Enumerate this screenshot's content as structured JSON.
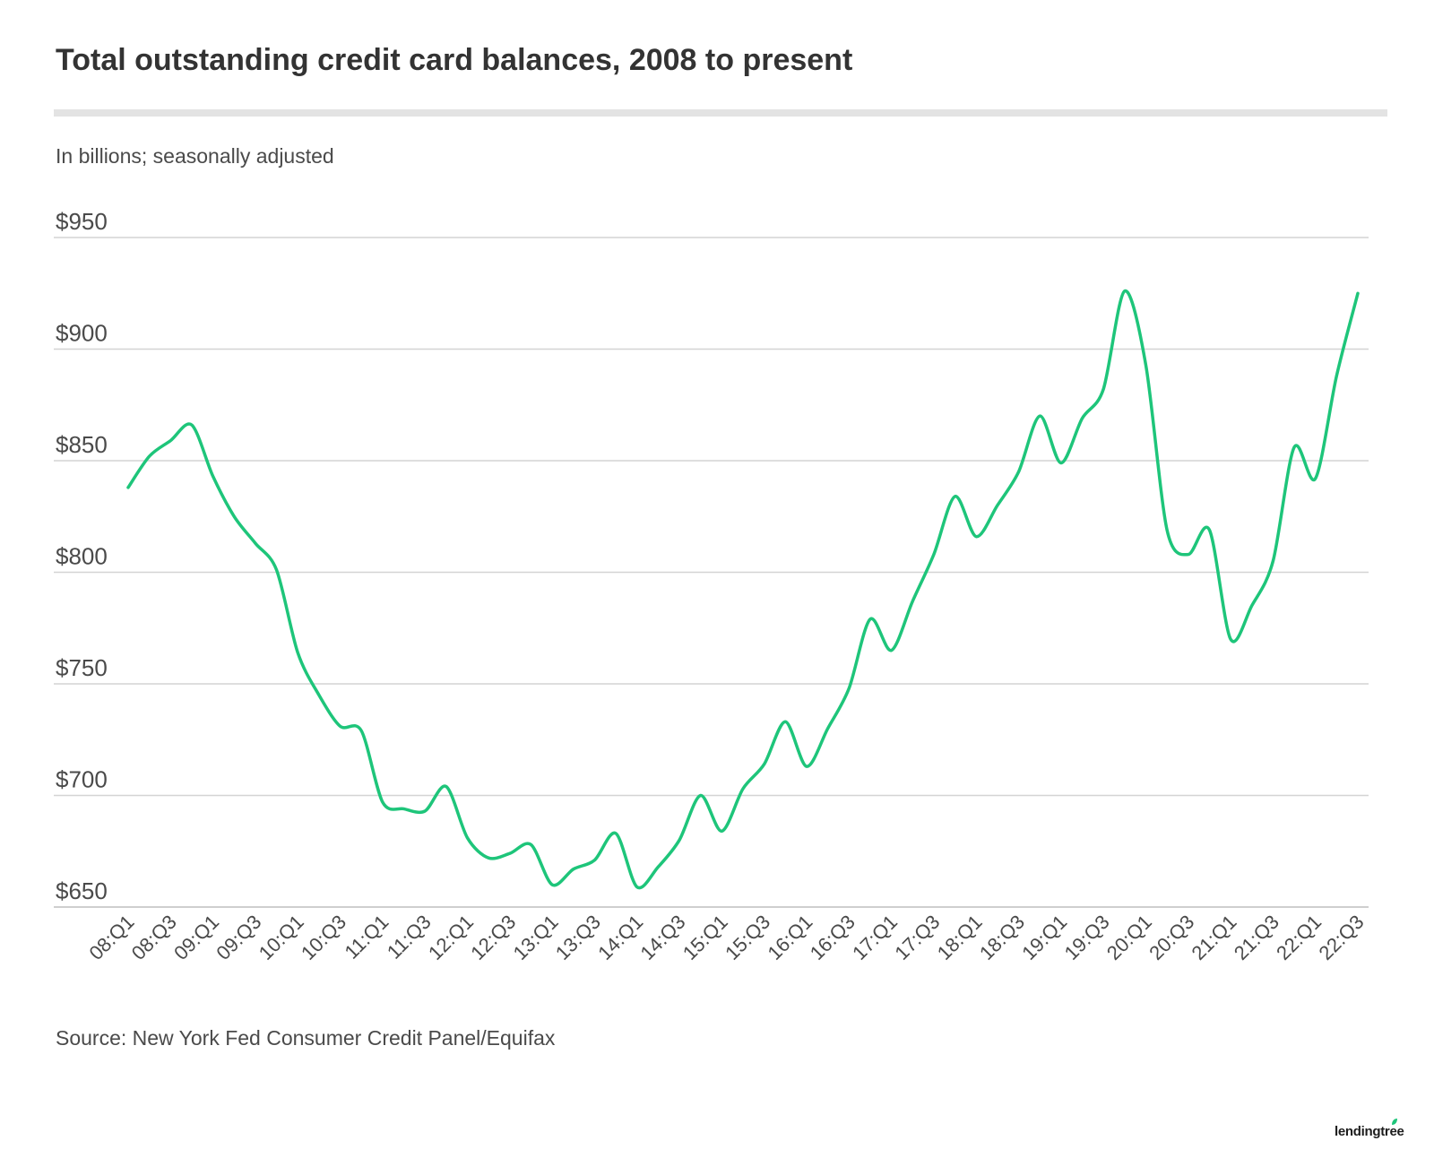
{
  "title": "Total outstanding credit card balances, 2008 to present",
  "subtitle": "In billions; seasonally adjusted",
  "source": "Source: New York Fed Consumer Credit Panel/Equifax",
  "logo_text": "lendingtree",
  "colors": {
    "line": "#1ec57a",
    "grid": "#d4d4d4",
    "text": "#4a4a4a",
    "title": "#333333"
  },
  "chart_data": {
    "type": "line",
    "title": "Total outstanding credit card balances, 2008 to present",
    "subtitle": "In billions; seasonally adjusted",
    "xlabel": "",
    "ylabel": "",
    "ylim": [
      650,
      950
    ],
    "yticks": [
      650,
      700,
      750,
      800,
      850,
      900,
      950
    ],
    "ytick_labels": [
      "$650",
      "$700",
      "$750",
      "$800",
      "$850",
      "$900",
      "$950"
    ],
    "grid": true,
    "x": [
      "08:Q1",
      "08:Q2",
      "08:Q3",
      "08:Q4",
      "09:Q1",
      "09:Q2",
      "09:Q3",
      "09:Q4",
      "10:Q1",
      "10:Q2",
      "10:Q3",
      "10:Q4",
      "11:Q1",
      "11:Q2",
      "11:Q3",
      "11:Q4",
      "12:Q1",
      "12:Q2",
      "12:Q3",
      "12:Q4",
      "13:Q1",
      "13:Q2",
      "13:Q3",
      "13:Q4",
      "14:Q1",
      "14:Q2",
      "14:Q3",
      "14:Q4",
      "15:Q1",
      "15:Q2",
      "15:Q3",
      "15:Q4",
      "16:Q1",
      "16:Q2",
      "16:Q3",
      "16:Q4",
      "17:Q1",
      "17:Q2",
      "17:Q3",
      "17:Q4",
      "18:Q1",
      "18:Q2",
      "18:Q3",
      "18:Q4",
      "19:Q1",
      "19:Q2",
      "19:Q3",
      "19:Q4",
      "20:Q1",
      "20:Q2",
      "20:Q3",
      "20:Q4",
      "21:Q1",
      "21:Q2",
      "21:Q3",
      "21:Q4",
      "22:Q1",
      "22:Q2",
      "22:Q3"
    ],
    "x_tick_labels": [
      "08:Q1",
      "08:Q3",
      "09:Q1",
      "09:Q3",
      "10:Q1",
      "10:Q3",
      "11:Q1",
      "11:Q3",
      "12:Q1",
      "12:Q3",
      "13:Q1",
      "13:Q3",
      "14:Q1",
      "14:Q3",
      "15:Q1",
      "15:Q3",
      "16:Q1",
      "16:Q3",
      "17:Q1",
      "17:Q3",
      "18:Q1",
      "18:Q3",
      "19:Q1",
      "19:Q3",
      "20:Q1",
      "20:Q3",
      "21:Q1",
      "21:Q3",
      "22:Q1",
      "22:Q3"
    ],
    "series": [
      {
        "values": [
          838,
          852,
          859,
          866,
          843,
          825,
          813,
          801,
          764,
          745,
          731,
          729,
          697,
          694,
          693,
          704,
          681,
          672,
          674,
          678,
          660,
          667,
          671,
          683,
          659,
          668,
          680,
          700,
          684,
          703,
          714,
          733,
          713,
          730,
          748,
          779,
          765,
          787,
          808,
          834,
          816,
          830,
          845,
          870,
          849,
          869,
          882,
          926,
          893,
          819,
          808,
          819,
          770,
          785,
          805,
          856,
          842,
          888,
          925
        ]
      }
    ]
  }
}
